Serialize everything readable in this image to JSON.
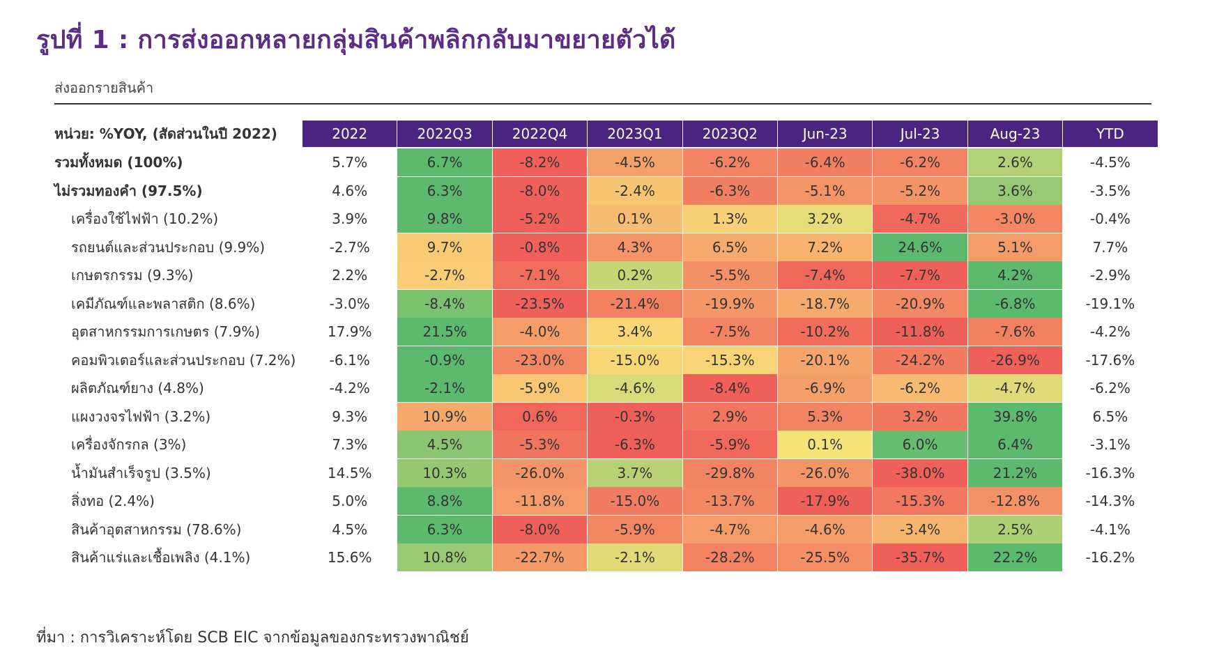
{
  "page": {
    "title": "รูปที่ 1 : การส่งออกหลายกลุ่มสินค้าพลิกกลับมาขยายตัวได้",
    "subtitle": "ส่งออกรายสินค้า",
    "source": "ที่มา : การวิเคราะห์โดย SCB EIC จากข้อมูลของกระทรวงพาณิชย์"
  },
  "chart_data": {
    "type": "heatmap",
    "unit_label": "หน่วย: %YOY, (สัดส่วนในปี 2022)",
    "columns": [
      "2022",
      "2022Q3",
      "2022Q4",
      "2023Q1",
      "2023Q2",
      "Jun-23",
      "Jul-23",
      "Aug-23",
      "YTD"
    ],
    "colored_columns": [
      "2022Q3",
      "2022Q4",
      "2023Q1",
      "2023Q2",
      "Jun-23",
      "Jul-23",
      "Aug-23"
    ],
    "colors": {
      "header_bg": "#4a2480",
      "title": "#5b2d86",
      "scale_low": "#f0605a",
      "scale_mid": "#f9e27a",
      "scale_high": "#5cb96e"
    },
    "rows": [
      {
        "label": "รวมทั้งหมด (100%)",
        "bold": true,
        "values": [
          "5.7%",
          "6.7%",
          "-8.2%",
          "-4.5%",
          "-6.2%",
          "-6.4%",
          "-6.2%",
          "2.6%",
          "-4.5%"
        ],
        "numbers": [
          5.7,
          6.7,
          -8.2,
          -4.5,
          -6.2,
          -6.4,
          -6.2,
          2.6,
          -4.5
        ]
      },
      {
        "label": "ไม่รวมทองคำ (97.5%)",
        "bold": true,
        "values": [
          "4.6%",
          "6.3%",
          "-8.0%",
          "-2.4%",
          "-6.3%",
          "-5.1%",
          "-5.2%",
          "3.6%",
          "-3.5%"
        ],
        "numbers": [
          4.6,
          6.3,
          -8.0,
          -2.4,
          -6.3,
          -5.1,
          -5.2,
          3.6,
          -3.5
        ]
      },
      {
        "label": "เครื่องใช้ไฟฟ้า (10.2%)",
        "bold": false,
        "values": [
          "3.9%",
          "9.8%",
          "-5.2%",
          "0.1%",
          "1.3%",
          "3.2%",
          "-4.7%",
          "-3.0%",
          "-0.4%"
        ],
        "numbers": [
          3.9,
          9.8,
          -5.2,
          0.1,
          1.3,
          3.2,
          -4.7,
          -3.0,
          -0.4
        ]
      },
      {
        "label": "รถยนต์และส่วนประกอบ (9.9%)",
        "bold": false,
        "values": [
          "-2.7%",
          "9.7%",
          "-0.8%",
          "4.3%",
          "6.5%",
          "7.2%",
          "24.6%",
          "5.1%",
          "7.7%"
        ],
        "numbers": [
          -2.7,
          9.7,
          -0.8,
          4.3,
          6.5,
          7.2,
          24.6,
          5.1,
          7.7
        ]
      },
      {
        "label": "เกษตรกรรม (9.3%)",
        "bold": false,
        "values": [
          "2.2%",
          "-2.7%",
          "-7.1%",
          "0.2%",
          "-5.5%",
          "-7.4%",
          "-7.7%",
          "4.2%",
          "-2.9%"
        ],
        "numbers": [
          2.2,
          -2.7,
          -7.1,
          0.2,
          -5.5,
          -7.4,
          -7.7,
          4.2,
          -2.9
        ]
      },
      {
        "label": "เคมีภัณฑ์และพลาสติก (8.6%)",
        "bold": false,
        "values": [
          "-3.0%",
          "-8.4%",
          "-23.5%",
          "-21.4%",
          "-19.9%",
          "-18.7%",
          "-20.9%",
          "-6.8%",
          "-19.1%"
        ],
        "numbers": [
          -3.0,
          -8.4,
          -23.5,
          -21.4,
          -19.9,
          -18.7,
          -20.9,
          -6.8,
          -19.1
        ]
      },
      {
        "label": "อุตสาหกรรมการเกษตร (7.9%)",
        "bold": false,
        "values": [
          "17.9%",
          "21.5%",
          "-4.0%",
          "3.4%",
          "-7.5%",
          "-10.2%",
          "-11.8%",
          "-7.6%",
          "-4.2%"
        ],
        "numbers": [
          17.9,
          21.5,
          -4.0,
          3.4,
          -7.5,
          -10.2,
          -11.8,
          -7.6,
          -4.2
        ]
      },
      {
        "label": "คอมพิวเตอร์และส่วนประกอบ (7.2%)",
        "bold": false,
        "values": [
          "-6.1%",
          "-0.9%",
          "-23.0%",
          "-15.0%",
          "-15.3%",
          "-20.1%",
          "-24.2%",
          "-26.9%",
          "-17.6%"
        ],
        "numbers": [
          -6.1,
          -0.9,
          -23.0,
          -15.0,
          -15.3,
          -20.1,
          -24.2,
          -26.9,
          -17.6
        ]
      },
      {
        "label": "ผลิตภัณฑ์ยาง (4.8%)",
        "bold": false,
        "values": [
          "-4.2%",
          "-2.1%",
          "-5.9%",
          "-4.6%",
          "-8.4%",
          "-6.9%",
          "-6.2%",
          "-4.7%",
          "-6.2%"
        ],
        "numbers": [
          -4.2,
          -2.1,
          -5.9,
          -4.6,
          -8.4,
          -6.9,
          -6.2,
          -4.7,
          -6.2
        ]
      },
      {
        "label": "แผงวงจรไฟฟ้า (3.2%)",
        "bold": false,
        "values": [
          "9.3%",
          "10.9%",
          "0.6%",
          "-0.3%",
          "2.9%",
          "5.3%",
          "3.2%",
          "39.8%",
          "6.5%"
        ],
        "numbers": [
          9.3,
          10.9,
          0.6,
          -0.3,
          2.9,
          5.3,
          3.2,
          39.8,
          6.5
        ]
      },
      {
        "label": "เครื่องจักรกล (3%)",
        "bold": false,
        "values": [
          "7.3%",
          "4.5%",
          "-5.3%",
          "-6.3%",
          "-5.9%",
          "0.1%",
          "6.0%",
          "6.4%",
          "-3.1%"
        ],
        "numbers": [
          7.3,
          4.5,
          -5.3,
          -6.3,
          -5.9,
          0.1,
          6.0,
          6.4,
          -3.1
        ]
      },
      {
        "label": "น้ำมันสำเร็จรูป (3.5%)",
        "bold": false,
        "values": [
          "14.5%",
          "10.3%",
          "-26.0%",
          "3.7%",
          "-29.8%",
          "-26.0%",
          "-38.0%",
          "21.2%",
          "-16.3%"
        ],
        "numbers": [
          14.5,
          10.3,
          -26.0,
          3.7,
          -29.8,
          -26.0,
          -38.0,
          21.2,
          -16.3
        ]
      },
      {
        "label": "สิ่งทอ (2.4%)",
        "bold": false,
        "values": [
          "5.0%",
          "8.8%",
          "-11.8%",
          "-15.0%",
          "-13.7%",
          "-17.9%",
          "-15.3%",
          "-12.8%",
          "-14.3%"
        ],
        "numbers": [
          5.0,
          8.8,
          -11.8,
          -15.0,
          -13.7,
          -17.9,
          -15.3,
          -12.8,
          -14.3
        ]
      },
      {
        "label": "สินค้าอุตสาหกรรม (78.6%)",
        "bold": false,
        "values": [
          "4.5%",
          "6.3%",
          "-8.0%",
          "-5.9%",
          "-4.7%",
          "-4.6%",
          "-3.4%",
          "2.5%",
          "-4.1%"
        ],
        "numbers": [
          4.5,
          6.3,
          -8.0,
          -5.9,
          -4.7,
          -4.6,
          -3.4,
          2.5,
          -4.1
        ]
      },
      {
        "label": "สินค้าแร่และเชื้อเพลิง (4.1%)",
        "bold": false,
        "values": [
          "15.6%",
          "10.8%",
          "-22.7%",
          "-2.1%",
          "-28.2%",
          "-25.5%",
          "-35.7%",
          "22.2%",
          "-16.2%"
        ],
        "numbers": [
          15.6,
          10.8,
          -22.7,
          -2.1,
          -28.2,
          -25.5,
          -35.7,
          22.2,
          -16.2
        ]
      }
    ]
  }
}
